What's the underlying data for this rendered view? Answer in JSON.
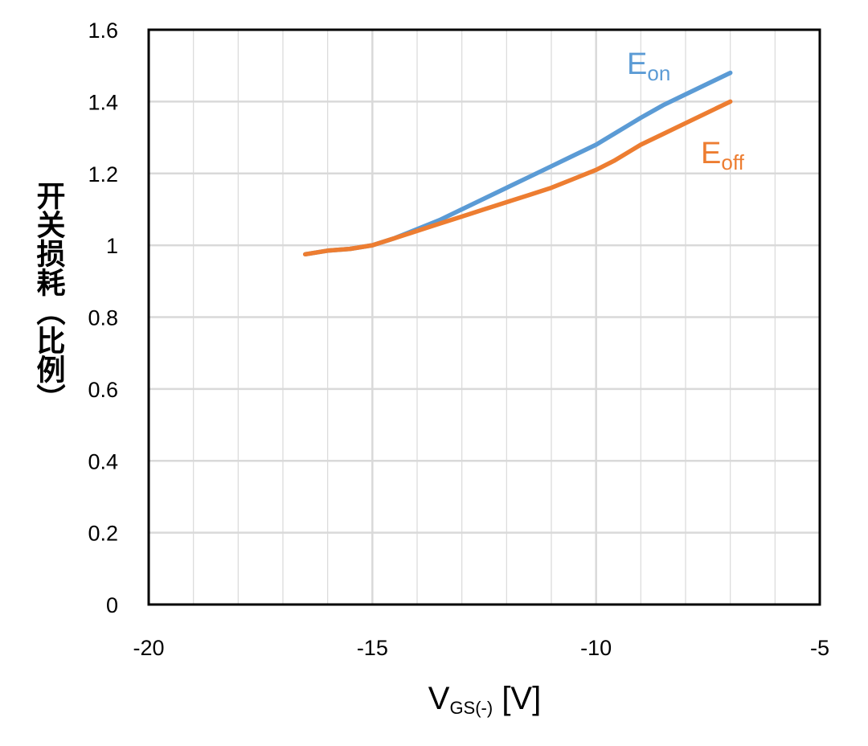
{
  "chart_data": {
    "type": "line",
    "title": "",
    "xlabel": {
      "main": "V",
      "sub": "GS(-)",
      "unit": " [V]"
    },
    "ylabel": "开关损耗（比例）",
    "xlim": [
      -20,
      -5
    ],
    "ylim": [
      0,
      1.6
    ],
    "x_ticks": [
      -20,
      -15,
      -10,
      -5
    ],
    "x_tick_labels": [
      "-20",
      "-15",
      "-10",
      "-5"
    ],
    "x_minor_step": 1,
    "y_ticks": [
      0,
      0.2,
      0.4,
      0.6,
      0.8,
      1,
      1.2,
      1.4,
      1.6
    ],
    "y_tick_labels": [
      "0",
      "0.2",
      "0.4",
      "0.6",
      "0.8",
      "1",
      "1.2",
      "1.4",
      "1.6"
    ],
    "grid": true,
    "colors": {
      "on": "#5b9bd5",
      "off": "#ed7d31",
      "grid": "#d9d9d9",
      "frame": "#000000"
    },
    "series": [
      {
        "key": "on",
        "name_main": "E",
        "name_sub": "on",
        "x": [
          -16.5,
          -16,
          -15.5,
          -15,
          -14.5,
          -14,
          -13.5,
          -13,
          -12.5,
          -12,
          -11.5,
          -11,
          -10.5,
          -10,
          -9.6,
          -9.2,
          -9,
          -8.5,
          -8,
          -7.5,
          -7
        ],
        "y": [
          0.975,
          0.985,
          0.99,
          1.0,
          1.02,
          1.045,
          1.07,
          1.1,
          1.13,
          1.16,
          1.19,
          1.22,
          1.25,
          1.28,
          1.31,
          1.34,
          1.355,
          1.39,
          1.42,
          1.45,
          1.48
        ]
      },
      {
        "key": "off",
        "name_main": "E",
        "name_sub": "off",
        "x": [
          -16.5,
          -16,
          -15.5,
          -15,
          -14.5,
          -14,
          -13.5,
          -13,
          -12.5,
          -12,
          -11.5,
          -11,
          -10.5,
          -10,
          -9.6,
          -9.2,
          -9,
          -8.5,
          -8,
          -7.5,
          -7
        ],
        "y": [
          0.975,
          0.985,
          0.99,
          1.0,
          1.02,
          1.04,
          1.06,
          1.08,
          1.1,
          1.12,
          1.14,
          1.16,
          1.185,
          1.21,
          1.235,
          1.265,
          1.28,
          1.31,
          1.34,
          1.37,
          1.4
        ]
      }
    ]
  }
}
